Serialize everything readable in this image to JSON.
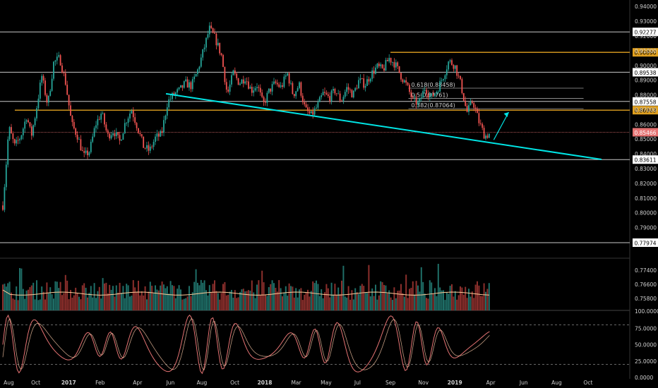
{
  "chart_data": {
    "type": "candlestick",
    "theme": {
      "background": "#000000",
      "up_color": "#26a69a",
      "down_color": "#ef5350",
      "trendline_color": "#00e5e5",
      "gold_color": "#e0a020",
      "white_line_color": "#c8c8c8",
      "fib_line_color": "#9e9e9e",
      "current_price_color": "#e57373",
      "volume_ma_color": "#ffcc99",
      "oscillator_color": "#e57373",
      "axis_text_color": "#d0d0d0"
    },
    "price_axis": {
      "ticks": [
        "0.94000",
        "0.93000",
        "0.92000",
        "0.91000",
        "0.90000",
        "0.89000",
        "0.88000",
        "0.87000",
        "0.86000",
        "0.85000",
        "0.84000",
        "0.83000",
        "0.82000",
        "0.81000",
        "0.80000",
        "0.79000",
        "0.78000",
        "0.77400",
        "0.76600",
        "0.75800"
      ],
      "main_ticks": [
        0.94,
        0.93,
        0.92,
        0.91,
        0.9,
        0.89,
        0.88,
        0.87,
        0.86,
        0.85,
        0.84,
        0.83,
        0.82,
        0.81,
        0.8,
        0.79
      ],
      "main_range": [
        0.7735,
        0.9425
      ],
      "volume_ticks": [
        {
          "label": "0.77400",
          "v": 0.774
        },
        {
          "label": "0.76600",
          "v": 0.766
        },
        {
          "label": "0.75800",
          "v": 0.758
        }
      ]
    },
    "time_axis": [
      "Aug",
      "Oct",
      "2017",
      "Feb",
      "Apr",
      "Jun",
      "Aug",
      "Oct",
      "2018",
      "Mar",
      "May",
      "Jul",
      "Sep",
      "Nov",
      "2019",
      "Apr",
      "Jun",
      "Aug",
      "Oct"
    ],
    "time_axis_positions": [
      0.04,
      0.22,
      0.44,
      0.65,
      0.9,
      1.12,
      1.33,
      1.55,
      1.75,
      1.96,
      2.16,
      2.37,
      2.59,
      2.81,
      3.02,
      3.26,
      3.48,
      3.7,
      3.91
    ],
    "time_axis_bold": [
      "2017",
      "2018",
      "2019"
    ],
    "horizontal_levels": [
      {
        "value": 0.92277,
        "label": "0.92277",
        "style": "white"
      },
      {
        "value": 0.9089,
        "label": "0.90890",
        "style": "gold",
        "start": 2.59
      },
      {
        "value": 0.89538,
        "label": "0.89538",
        "style": "white"
      },
      {
        "value": 0.87558,
        "label": "0.87558",
        "style": "white"
      },
      {
        "value": 0.86963,
        "label": "0.86963",
        "style": "gold",
        "start": 0.08
      },
      {
        "value": 0.85466,
        "label": "0.85466",
        "style": "current"
      },
      {
        "value": 0.83611,
        "label": "0.83611",
        "style": "white"
      },
      {
        "value": 0.77974,
        "label": "0.77974",
        "style": "white"
      }
    ],
    "fibonacci": [
      {
        "label": "0.618(0.88458)",
        "value": 0.88458
      },
      {
        "label": "0.5(0.87761)",
        "value": 0.87761
      },
      {
        "label": "0.382(0.87064)",
        "value": 0.87064
      }
    ],
    "fib_range": [
      2.71,
      3.88
    ],
    "trendline": {
      "from": [
        1.09,
        0.8808
      ],
      "to": [
        4.0,
        0.8362
      ]
    },
    "projection_arrow": {
      "from": [
        3.28,
        0.8495
      ],
      "to": [
        3.38,
        0.8683
      ]
    },
    "price_path": [
      [
        0.0,
        0.805
      ],
      [
        0.02,
        0.83
      ],
      [
        0.04,
        0.858
      ],
      [
        0.08,
        0.845
      ],
      [
        0.12,
        0.852
      ],
      [
        0.16,
        0.866
      ],
      [
        0.19,
        0.852
      ],
      [
        0.22,
        0.868
      ],
      [
        0.26,
        0.893
      ],
      [
        0.3,
        0.873
      ],
      [
        0.34,
        0.902
      ],
      [
        0.38,
        0.905
      ],
      [
        0.42,
        0.888
      ],
      [
        0.46,
        0.86
      ],
      [
        0.5,
        0.852
      ],
      [
        0.54,
        0.838
      ],
      [
        0.58,
        0.842
      ],
      [
        0.62,
        0.86
      ],
      [
        0.66,
        0.868
      ],
      [
        0.7,
        0.852
      ],
      [
        0.74,
        0.856
      ],
      [
        0.78,
        0.848
      ],
      [
        0.82,
        0.862
      ],
      [
        0.86,
        0.87
      ],
      [
        0.9,
        0.858
      ],
      [
        0.94,
        0.845
      ],
      [
        0.98,
        0.842
      ],
      [
        1.02,
        0.851
      ],
      [
        1.06,
        0.853
      ],
      [
        1.1,
        0.875
      ],
      [
        1.14,
        0.88
      ],
      [
        1.18,
        0.883
      ],
      [
        1.22,
        0.888
      ],
      [
        1.26,
        0.886
      ],
      [
        1.3,
        0.896
      ],
      [
        1.34,
        0.91
      ],
      [
        1.38,
        0.925
      ],
      [
        1.42,
        0.918
      ],
      [
        1.46,
        0.907
      ],
      [
        1.5,
        0.88
      ],
      [
        1.54,
        0.895
      ],
      [
        1.58,
        0.888
      ],
      [
        1.62,
        0.892
      ],
      [
        1.66,
        0.883
      ],
      [
        1.7,
        0.887
      ],
      [
        1.74,
        0.873
      ],
      [
        1.78,
        0.883
      ],
      [
        1.82,
        0.888
      ],
      [
        1.86,
        0.885
      ],
      [
        1.9,
        0.895
      ],
      [
        1.94,
        0.88
      ],
      [
        1.98,
        0.887
      ],
      [
        2.02,
        0.87
      ],
      [
        2.06,
        0.866
      ],
      [
        2.1,
        0.872
      ],
      [
        2.14,
        0.881
      ],
      [
        2.18,
        0.878
      ],
      [
        2.22,
        0.883
      ],
      [
        2.26,
        0.876
      ],
      [
        2.3,
        0.885
      ],
      [
        2.34,
        0.88
      ],
      [
        2.38,
        0.89
      ],
      [
        2.42,
        0.887
      ],
      [
        2.46,
        0.894
      ],
      [
        2.5,
        0.899
      ],
      [
        2.54,
        0.897
      ],
      [
        2.58,
        0.905
      ],
      [
        2.62,
        0.901
      ],
      [
        2.66,
        0.893
      ],
      [
        2.7,
        0.886
      ],
      [
        2.74,
        0.876
      ],
      [
        2.78,
        0.874
      ],
      [
        2.82,
        0.885
      ],
      [
        2.86,
        0.878
      ],
      [
        2.9,
        0.883
      ],
      [
        2.94,
        0.892
      ],
      [
        2.98,
        0.903
      ],
      [
        3.02,
        0.9
      ],
      [
        3.06,
        0.887
      ],
      [
        3.1,
        0.868
      ],
      [
        3.14,
        0.876
      ],
      [
        3.18,
        0.862
      ],
      [
        3.22,
        0.852
      ],
      [
        3.26,
        0.854
      ]
    ],
    "main_series_end": 3.26,
    "volume_ma": [
      [
        0,
        0.004
      ],
      [
        0.5,
        0.003
      ],
      [
        1.0,
        0.0036
      ],
      [
        1.5,
        0.0028
      ],
      [
        2.0,
        0.0031
      ],
      [
        2.5,
        0.0033
      ],
      [
        3.0,
        0.0036
      ],
      [
        3.26,
        0.0034
      ]
    ],
    "oscillator": {
      "ticks": [
        {
          "label": "100.0000",
          "v": 100
        },
        {
          "label": "75.0000",
          "v": 75
        },
        {
          "label": "50.0000",
          "v": 50
        },
        {
          "label": "25.0000",
          "v": 25
        },
        {
          "label": "0.0000",
          "v": 0
        }
      ],
      "upper_band": 80,
      "lower_band": 20
    }
  }
}
